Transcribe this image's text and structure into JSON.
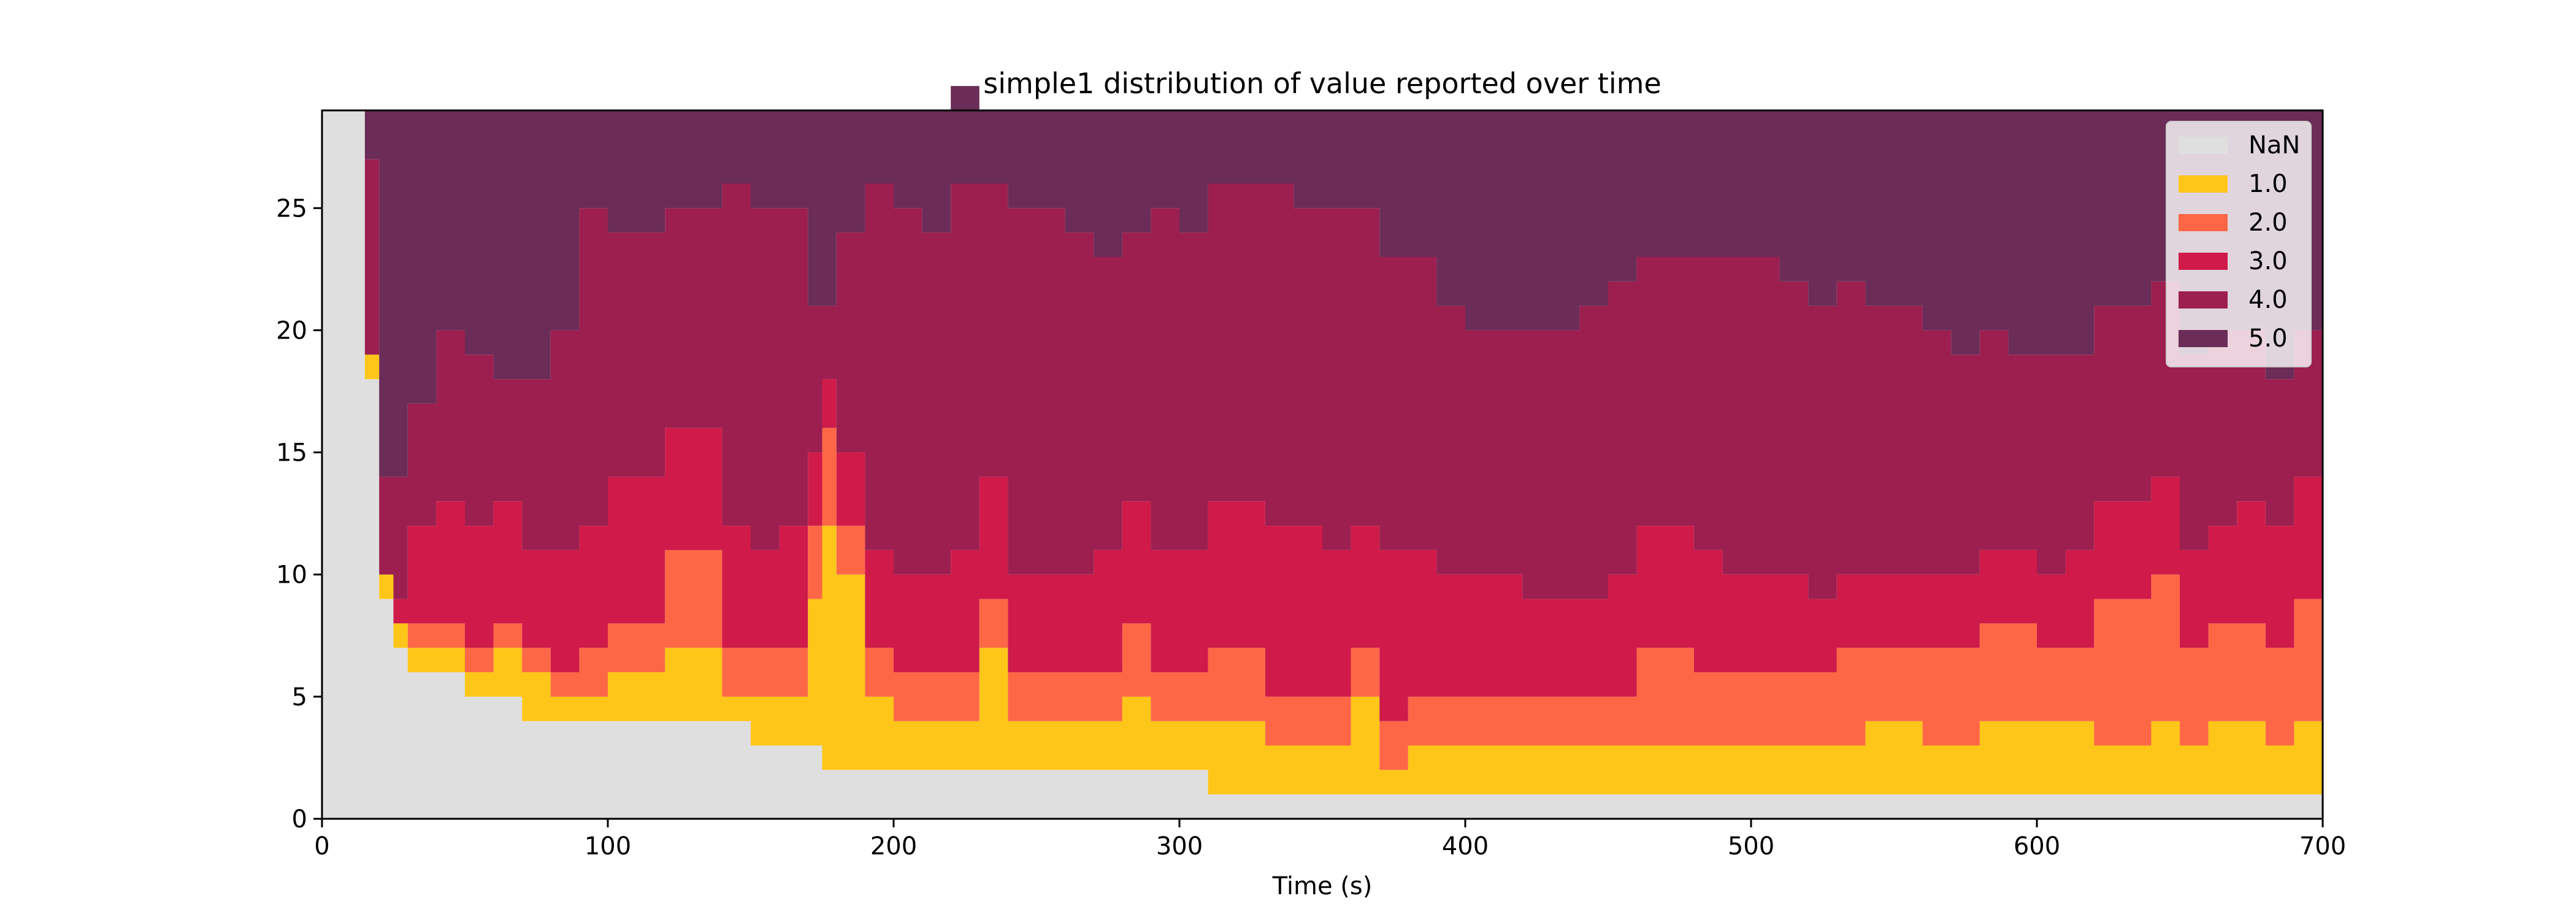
{
  "chart_data": {
    "type": "area",
    "stacked": true,
    "step": true,
    "title": "simple1 distribution of value reported over time",
    "xlabel": "Time (s)",
    "ylabel": "",
    "xlim": [
      0,
      700
    ],
    "ylim": [
      0,
      29
    ],
    "xticks": [
      0,
      100,
      200,
      300,
      400,
      500,
      600,
      700
    ],
    "yticks": [
      0,
      5,
      10,
      15,
      20,
      25
    ],
    "xtick_labels": [
      "0",
      "100",
      "200",
      "300",
      "400",
      "500",
      "600",
      "700"
    ],
    "ytick_labels": [
      "0",
      "5",
      "10",
      "15",
      "20",
      "25"
    ],
    "grid": false,
    "legend_position": "top-right",
    "x": [
      0,
      10,
      15,
      20,
      25,
      30,
      40,
      50,
      60,
      70,
      80,
      90,
      100,
      110,
      120,
      130,
      140,
      150,
      160,
      170,
      175,
      180,
      190,
      200,
      210,
      220,
      230,
      240,
      250,
      260,
      270,
      280,
      290,
      300,
      310,
      320,
      330,
      340,
      350,
      360,
      370,
      380,
      390,
      400,
      410,
      420,
      430,
      440,
      450,
      460,
      470,
      480,
      490,
      500,
      510,
      520,
      530,
      540,
      550,
      560,
      570,
      580,
      590,
      600,
      610,
      620,
      630,
      640,
      650,
      660,
      670,
      680,
      690,
      700
    ],
    "series": [
      {
        "name": "NaN",
        "color": "#dfdfdf",
        "values": [
          29,
          29,
          18,
          9,
          7,
          6,
          6,
          5,
          5,
          4,
          4,
          4,
          4,
          4,
          4,
          4,
          4,
          3,
          3,
          3,
          2,
          2,
          2,
          2,
          2,
          2,
          2,
          2,
          2,
          2,
          2,
          2,
          2,
          2,
          1,
          1,
          1,
          1,
          1,
          1,
          1,
          1,
          1,
          1,
          1,
          1,
          1,
          1,
          1,
          1,
          1,
          1,
          1,
          1,
          1,
          1,
          1,
          1,
          1,
          1,
          1,
          1,
          1,
          1,
          1,
          1,
          1,
          1,
          1,
          1,
          1,
          1,
          1,
          1
        ]
      },
      {
        "name": "1.0",
        "color": "#fec619",
        "values": [
          0,
          0,
          1,
          1,
          1,
          1,
          1,
          1,
          2,
          2,
          1,
          1,
          2,
          2,
          3,
          3,
          1,
          2,
          2,
          6,
          10,
          8,
          3,
          2,
          2,
          2,
          5,
          2,
          2,
          2,
          2,
          3,
          2,
          2,
          3,
          3,
          2,
          2,
          2,
          4,
          1,
          2,
          2,
          2,
          2,
          2,
          2,
          2,
          2,
          2,
          2,
          2,
          2,
          2,
          2,
          2,
          2,
          3,
          3,
          2,
          2,
          3,
          3,
          3,
          3,
          2,
          2,
          3,
          2,
          3,
          3,
          2,
          3,
          4
        ]
      },
      {
        "name": "2.0",
        "color": "#fe6746",
        "values": [
          0,
          0,
          0,
          0,
          0,
          1,
          1,
          1,
          1,
          1,
          1,
          2,
          2,
          2,
          4,
          4,
          2,
          2,
          2,
          3,
          4,
          2,
          2,
          2,
          2,
          2,
          2,
          2,
          2,
          2,
          2,
          3,
          2,
          2,
          3,
          3,
          2,
          2,
          2,
          2,
          2,
          2,
          2,
          2,
          2,
          2,
          2,
          2,
          2,
          4,
          4,
          3,
          3,
          3,
          3,
          3,
          4,
          3,
          3,
          4,
          4,
          4,
          4,
          3,
          3,
          6,
          6,
          6,
          4,
          4,
          4,
          4,
          5,
          5
        ]
      },
      {
        "name": "3.0",
        "color": "#cf1a4a",
        "values": [
          0,
          0,
          0,
          0,
          1,
          4,
          5,
          5,
          5,
          4,
          5,
          5,
          6,
          6,
          5,
          5,
          5,
          4,
          5,
          3,
          2,
          3,
          4,
          4,
          4,
          5,
          5,
          4,
          4,
          4,
          5,
          5,
          5,
          5,
          6,
          6,
          7,
          7,
          6,
          5,
          7,
          6,
          5,
          5,
          5,
          4,
          4,
          4,
          5,
          5,
          5,
          5,
          4,
          4,
          4,
          3,
          3,
          3,
          3,
          3,
          3,
          3,
          3,
          3,
          4,
          4,
          4,
          4,
          4,
          4,
          5,
          5,
          5,
          5
        ]
      },
      {
        "name": "4.0",
        "color": "#9c1f4f",
        "values": [
          0,
          0,
          8,
          4,
          5,
          5,
          7,
          7,
          5,
          7,
          9,
          13,
          10,
          10,
          9,
          9,
          14,
          14,
          13,
          6,
          3,
          9,
          15,
          15,
          14,
          15,
          12,
          15,
          15,
          14,
          12,
          11,
          14,
          13,
          13,
          13,
          14,
          13,
          14,
          13,
          12,
          12,
          11,
          10,
          10,
          11,
          11,
          12,
          12,
          11,
          11,
          12,
          13,
          13,
          12,
          12,
          12,
          11,
          11,
          10,
          9,
          9,
          8,
          9,
          8,
          8,
          8,
          8,
          8,
          8,
          7,
          6,
          6,
          6
        ]
      },
      {
        "name": "5.0",
        "color": "#6b2d57",
        "values": [
          0,
          0,
          2,
          15,
          15,
          12,
          9,
          10,
          11,
          11,
          9,
          4,
          5,
          5,
          4,
          4,
          3,
          4,
          4,
          8,
          8,
          5,
          3,
          4,
          5,
          4,
          3,
          4,
          4,
          5,
          6,
          5,
          4,
          5,
          3,
          3,
          3,
          4,
          4,
          4,
          6,
          6,
          8,
          9,
          9,
          9,
          9,
          8,
          7,
          6,
          6,
          6,
          6,
          6,
          7,
          8,
          7,
          8,
          8,
          9,
          10,
          9,
          10,
          10,
          10,
          8,
          8,
          7,
          10,
          9,
          9,
          11,
          9,
          8
        ]
      }
    ]
  }
}
